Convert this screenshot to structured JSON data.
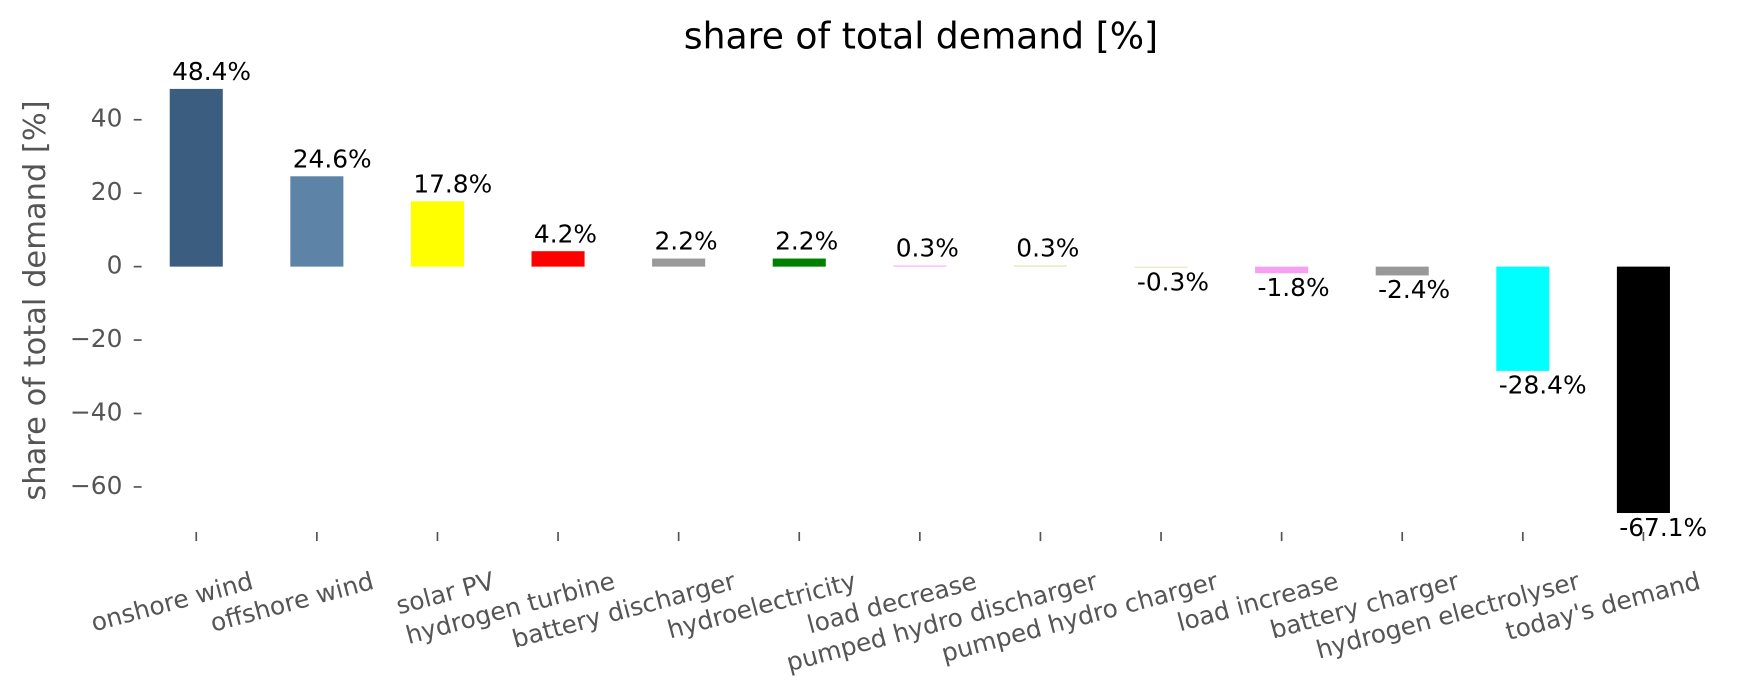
{
  "chart_data": {
    "type": "bar",
    "title": "share of total demand [%]",
    "y_label": "share of total demand [%]",
    "categories": [
      "onshore wind",
      "offshore wind",
      "solar PV",
      "hydrogen turbine",
      "battery discharger",
      "hydroelectricity",
      "load decrease",
      "pumped hydro discharger",
      "pumped hydro charger",
      "load increase",
      "battery charger",
      "hydrogen electrolyser",
      "today's demand"
    ],
    "values": [
      48.4,
      24.6,
      17.8,
      4.2,
      2.2,
      2.2,
      0.3,
      0.3,
      -0.3,
      -1.8,
      -2.4,
      -28.4,
      -67.1
    ],
    "value_labels": [
      "48.4%",
      "24.6%",
      "17.8%",
      "4.2%",
      "2.2%",
      "2.2%",
      "0.3%",
      "0.3%",
      "-0.3%",
      "-1.8%",
      "-2.4%",
      "-28.4%",
      "-67.1%"
    ],
    "colors": [
      "#3b5e80",
      "#5d84a6",
      "#ffff00",
      "#ff0000",
      "#999999",
      "#008000",
      "#ffa8ff",
      "#d8e6b0",
      "#e8e4b8",
      "#f5a0f0",
      "#999999",
      "#00ffff",
      "#000000"
    ],
    "ylim": [
      -73.5,
      52
    ],
    "yticks": [
      {
        "value": -60,
        "label": "−60"
      },
      {
        "value": -40,
        "label": "−40"
      },
      {
        "value": -20,
        "label": "−20"
      },
      0,
      20,
      40
    ],
    "grid": false
  }
}
